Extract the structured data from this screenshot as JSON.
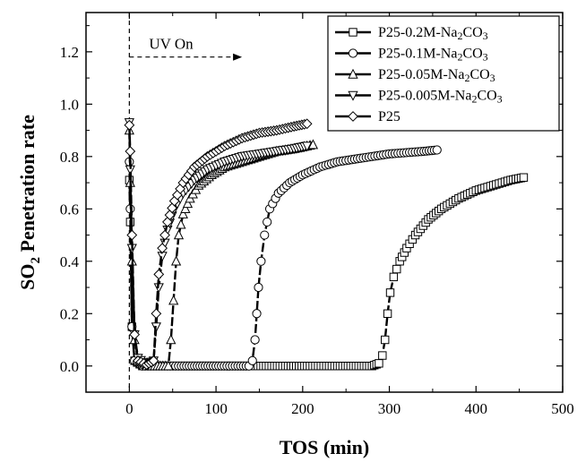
{
  "chart_data": {
    "type": "line",
    "xlabel": "TOS (min)",
    "ylabel_main": "SO",
    "ylabel_sub": "2",
    "ylabel_rest": " Penetration rate",
    "xlim": [
      -50,
      500
    ],
    "ylim": [
      -0.1,
      1.35
    ],
    "x_ticks": [
      0,
      100,
      200,
      300,
      400,
      500
    ],
    "y_ticks": [
      0.0,
      0.2,
      0.4,
      0.6,
      0.8,
      1.0,
      1.2
    ],
    "y_tick_labels": [
      "0.0",
      "0.2",
      "0.4",
      "0.6",
      "0.8",
      "1.0",
      "1.2"
    ],
    "grid": false,
    "legend_position": "top-right",
    "annotation": {
      "text": "UV On",
      "x_start": 0,
      "x_end": 130,
      "y": 1.18
    },
    "vline_x": 0,
    "series": [
      {
        "name": "P25-0.2M-Na2CO3",
        "marker": "square",
        "points": [
          [
            0,
            0.71
          ],
          [
            1,
            0.55
          ],
          [
            3,
            0.15
          ],
          [
            6,
            0.02
          ],
          [
            15,
            0.0
          ],
          [
            60,
            0.0
          ],
          [
            120,
            0.0
          ],
          [
            180,
            0.0
          ],
          [
            240,
            0.0
          ],
          [
            280,
            0.0
          ],
          [
            288,
            0.01
          ],
          [
            292,
            0.04
          ],
          [
            295,
            0.1
          ],
          [
            298,
            0.2
          ],
          [
            301,
            0.28
          ],
          [
            305,
            0.34
          ],
          [
            312,
            0.4
          ],
          [
            320,
            0.45
          ],
          [
            330,
            0.5
          ],
          [
            345,
            0.56
          ],
          [
            360,
            0.6
          ],
          [
            380,
            0.64
          ],
          [
            400,
            0.67
          ],
          [
            420,
            0.69
          ],
          [
            440,
            0.71
          ],
          [
            455,
            0.72
          ]
        ]
      },
      {
        "name": "P25-0.1M-Na2CO3",
        "marker": "circle",
        "points": [
          [
            0,
            0.78
          ],
          [
            1,
            0.6
          ],
          [
            3,
            0.15
          ],
          [
            6,
            0.02
          ],
          [
            15,
            0.0
          ],
          [
            60,
            0.0
          ],
          [
            100,
            0.0
          ],
          [
            138,
            0.0
          ],
          [
            142,
            0.02
          ],
          [
            145,
            0.1
          ],
          [
            147,
            0.2
          ],
          [
            149,
            0.3
          ],
          [
            152,
            0.4
          ],
          [
            156,
            0.5
          ],
          [
            162,
            0.6
          ],
          [
            172,
            0.66
          ],
          [
            185,
            0.7
          ],
          [
            200,
            0.73
          ],
          [
            220,
            0.76
          ],
          [
            240,
            0.78
          ],
          [
            260,
            0.79
          ],
          [
            280,
            0.8
          ],
          [
            300,
            0.81
          ],
          [
            320,
            0.815
          ],
          [
            340,
            0.82
          ],
          [
            355,
            0.825
          ]
        ]
      },
      {
        "name": "P25-0.05M-Na2CO3",
        "marker": "triangle-up",
        "points": [
          [
            0,
            0.9
          ],
          [
            1,
            0.7
          ],
          [
            3,
            0.4
          ],
          [
            6,
            0.1
          ],
          [
            10,
            0.02
          ],
          [
            20,
            0.0
          ],
          [
            45,
            0.0
          ],
          [
            48,
            0.1
          ],
          [
            51,
            0.25
          ],
          [
            54,
            0.4
          ],
          [
            57,
            0.5
          ],
          [
            62,
            0.58
          ],
          [
            70,
            0.64
          ],
          [
            80,
            0.69
          ],
          [
            95,
            0.73
          ],
          [
            110,
            0.76
          ],
          [
            130,
            0.78
          ],
          [
            150,
            0.8
          ],
          [
            170,
            0.82
          ],
          [
            190,
            0.83
          ],
          [
            205,
            0.84
          ],
          [
            212,
            0.845
          ]
        ]
      },
      {
        "name": "P25-0.005M-Na2CO3",
        "marker": "triangle-down",
        "points": [
          [
            0,
            0.93
          ],
          [
            1,
            0.75
          ],
          [
            3,
            0.45
          ],
          [
            6,
            0.12
          ],
          [
            10,
            0.03
          ],
          [
            20,
            0.005
          ],
          [
            28,
            0.02
          ],
          [
            31,
            0.15
          ],
          [
            34,
            0.3
          ],
          [
            38,
            0.42
          ],
          [
            44,
            0.52
          ],
          [
            52,
            0.6
          ],
          [
            62,
            0.66
          ],
          [
            75,
            0.71
          ],
          [
            90,
            0.75
          ],
          [
            110,
            0.78
          ],
          [
            130,
            0.8
          ],
          [
            150,
            0.81
          ],
          [
            170,
            0.82
          ],
          [
            190,
            0.83
          ],
          [
            205,
            0.84
          ]
        ]
      },
      {
        "name": "P25",
        "marker": "diamond",
        "points": [
          [
            0,
            0.92
          ],
          [
            1,
            0.82
          ],
          [
            3,
            0.5
          ],
          [
            6,
            0.12
          ],
          [
            10,
            0.02
          ],
          [
            20,
            0.005
          ],
          [
            28,
            0.02
          ],
          [
            31,
            0.2
          ],
          [
            34,
            0.35
          ],
          [
            38,
            0.45
          ],
          [
            44,
            0.55
          ],
          [
            52,
            0.63
          ],
          [
            62,
            0.7
          ],
          [
            75,
            0.76
          ],
          [
            90,
            0.8
          ],
          [
            110,
            0.84
          ],
          [
            130,
            0.87
          ],
          [
            150,
            0.89
          ],
          [
            170,
            0.9
          ],
          [
            190,
            0.915
          ],
          [
            205,
            0.925
          ]
        ]
      }
    ],
    "legend": [
      {
        "base": "P25-0.2M-Na",
        "sub1": "2",
        "mid": "CO",
        "sub2": "3"
      },
      {
        "base": "P25-0.1M-Na",
        "sub1": "2",
        "mid": "CO",
        "sub2": "3"
      },
      {
        "base": "P25-0.05M-Na",
        "sub1": "2",
        "mid": "CO",
        "sub2": "3"
      },
      {
        "base": "P25-0.005M-Na",
        "sub1": "2",
        "mid": "CO",
        "sub2": "3"
      },
      {
        "base": "P25",
        "sub1": "",
        "mid": "",
        "sub2": ""
      }
    ]
  }
}
